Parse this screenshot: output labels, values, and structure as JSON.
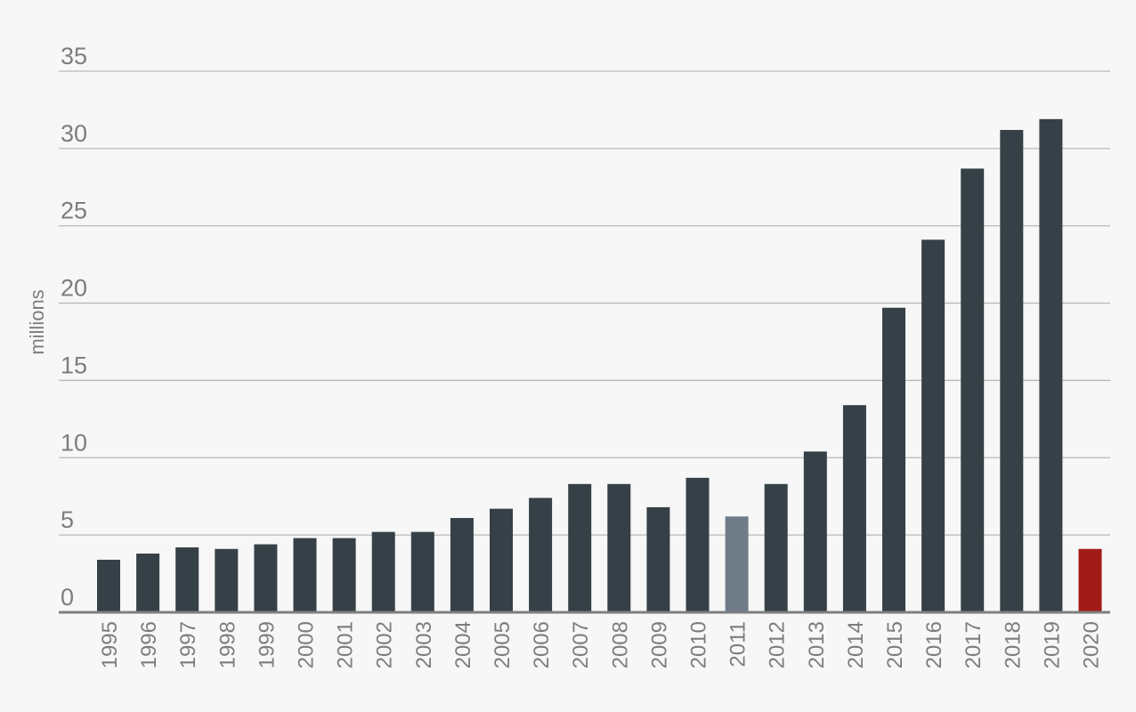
{
  "chart_data": {
    "type": "bar",
    "title": "",
    "xlabel": "",
    "ylabel": "millions",
    "ylim": [
      0,
      35
    ],
    "yticks": [
      0,
      5,
      10,
      15,
      20,
      25,
      30,
      35
    ],
    "grid": true,
    "legend": "none",
    "categories": [
      "1995",
      "1996",
      "1997",
      "1998",
      "1999",
      "2000",
      "2001",
      "2002",
      "2003",
      "2004",
      "2005",
      "2006",
      "2007",
      "2008",
      "2009",
      "2010",
      "2011",
      "2012",
      "2013",
      "2014",
      "2015",
      "2016",
      "2017",
      "2018",
      "2019",
      "2020"
    ],
    "values": [
      3.4,
      3.8,
      4.2,
      4.1,
      4.4,
      4.8,
      4.8,
      5.2,
      5.2,
      6.1,
      6.7,
      7.4,
      8.3,
      8.3,
      6.8,
      8.7,
      6.2,
      8.3,
      10.4,
      13.4,
      19.7,
      24.1,
      28.7,
      31.2,
      31.9,
      4.1
    ],
    "colors": {
      "default": "#364147",
      "highlight_2011": "#6f7c88",
      "highlight_2020": "#a31b18"
    },
    "bar_colors": [
      "#364147",
      "#364147",
      "#364147",
      "#364147",
      "#364147",
      "#364147",
      "#364147",
      "#364147",
      "#364147",
      "#364147",
      "#364147",
      "#364147",
      "#364147",
      "#364147",
      "#364147",
      "#364147",
      "#6f7c88",
      "#364147",
      "#364147",
      "#364147",
      "#364147",
      "#364147",
      "#364147",
      "#364147",
      "#364147",
      "#a31b18"
    ]
  }
}
